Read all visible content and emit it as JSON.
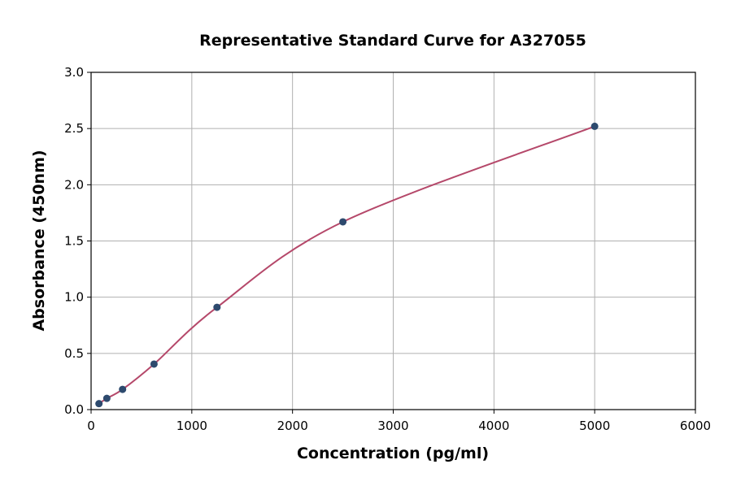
{
  "chart_data": {
    "type": "scatter",
    "title": "Representative Standard Curve for A327055",
    "xlabel": "Concentration (pg/ml)",
    "ylabel": "Absorbance (450nm)",
    "xlim": [
      0,
      6000
    ],
    "ylim": [
      0,
      3.0
    ],
    "xticks": [
      "0",
      "1000",
      "2000",
      "3000",
      "4000",
      "5000",
      "6000"
    ],
    "yticks": [
      "0.0",
      "0.5",
      "1.0",
      "1.5",
      "2.0",
      "2.5",
      "3.0"
    ],
    "grid": true,
    "series": [
      {
        "x": [
          78.125,
          156.25,
          312.5,
          625,
          1250,
          2500,
          5000
        ],
        "y": [
          0.053,
          0.1,
          0.18,
          0.405,
          0.91,
          1.67,
          2.52
        ]
      }
    ],
    "colors": {
      "points": "#2d4a6e",
      "curve": "#b5486a",
      "grid": "#b0b0b0"
    }
  }
}
